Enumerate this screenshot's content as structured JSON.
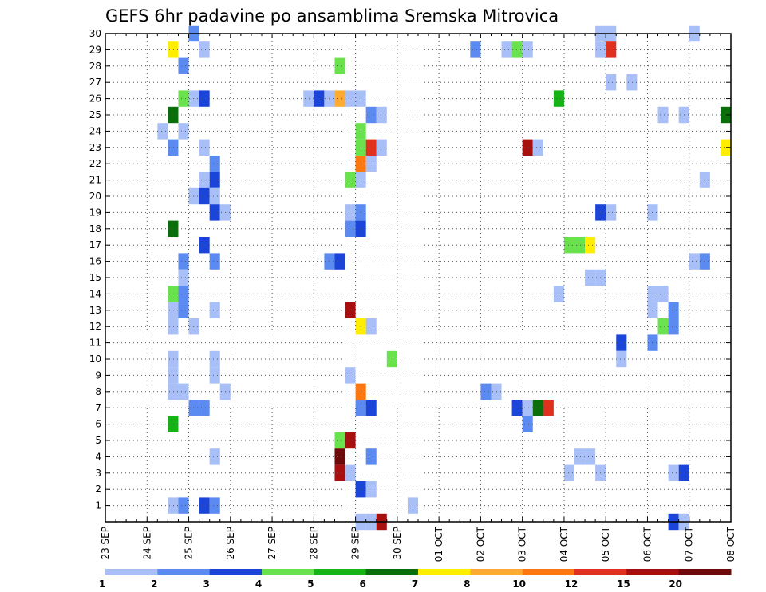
{
  "chart_data": {
    "type": "heatmap",
    "title": "GEFS 6hr padavine po ansamblima Sremska Mitrovica",
    "x_tick_labels": [
      "23 SEP",
      "24 SEP",
      "25 SEP",
      "26 SEP",
      "27 SEP",
      "28 SEP",
      "29 SEP",
      "30 SEP",
      "01 OCT",
      "02 OCT",
      "03 OCT",
      "04 OCT",
      "05 OCT",
      "06 OCT",
      "07 OCT",
      "08 OCT"
    ],
    "y_tick_labels": [
      "1",
      "2",
      "3",
      "4",
      "5",
      "6",
      "7",
      "8",
      "9",
      "10",
      "11",
      "12",
      "13",
      "14",
      "15",
      "16",
      "17",
      "18",
      "19",
      "20",
      "21",
      "22",
      "23",
      "24",
      "25",
      "26",
      "27",
      "28",
      "29",
      "30"
    ],
    "x_step_days": 0.25,
    "ylim": [
      0,
      30
    ],
    "grid": true,
    "legend": {
      "placement": "bottom",
      "labels": [
        "1",
        "2",
        "3",
        "4",
        "5",
        "6",
        "7",
        "8",
        "10",
        "12",
        "15",
        "20"
      ],
      "colors": [
        "#a9bff7",
        "#5b8af0",
        "#1b45d8",
        "#6ae24e",
        "#15b315",
        "#0a6e0a",
        "#ffee00",
        "#ffaa33",
        "#ff7711",
        "#e0301e",
        "#a80f0f",
        "#6e0a0a"
      ]
    },
    "cells_legend": "each cell = [x day index from 23 SEP 00Z, ensemble member, color class 1-12]",
    "cells": [
      [
        1.5,
        29,
        7
      ],
      [
        1.5,
        25,
        6
      ],
      [
        1.5,
        18,
        6
      ],
      [
        1.5,
        14,
        4
      ],
      [
        1.5,
        13,
        1
      ],
      [
        1.5,
        12,
        1
      ],
      [
        1.5,
        10,
        1
      ],
      [
        1.5,
        9,
        1
      ],
      [
        1.5,
        8,
        1
      ],
      [
        1.5,
        6,
        5
      ],
      [
        1.5,
        1,
        1
      ],
      [
        1.5,
        23,
        2
      ],
      [
        1.75,
        28,
        2
      ],
      [
        1.75,
        26,
        4
      ],
      [
        1.75,
        24,
        1
      ],
      [
        1.25,
        24,
        1
      ],
      [
        1.75,
        16,
        2
      ],
      [
        1.75,
        15,
        1
      ],
      [
        1.75,
        14,
        2
      ],
      [
        1.75,
        13,
        2
      ],
      [
        1.75,
        8,
        1
      ],
      [
        1.75,
        1,
        2
      ],
      [
        2.0,
        30,
        2
      ],
      [
        2.0,
        26,
        1
      ],
      [
        2.0,
        20,
        1
      ],
      [
        2.0,
        12,
        1
      ],
      [
        2.0,
        7,
        2
      ],
      [
        2.25,
        29,
        1
      ],
      [
        2.25,
        26,
        3
      ],
      [
        2.25,
        23,
        1
      ],
      [
        2.25,
        21,
        1
      ],
      [
        2.25,
        20,
        3
      ],
      [
        2.25,
        17,
        3
      ],
      [
        2.25,
        7,
        2
      ],
      [
        2.25,
        1,
        3
      ],
      [
        2.5,
        22,
        2
      ],
      [
        2.5,
        21,
        3
      ],
      [
        2.5,
        20,
        1
      ],
      [
        2.5,
        19,
        3
      ],
      [
        2.5,
        16,
        2
      ],
      [
        2.5,
        13,
        1
      ],
      [
        2.5,
        10,
        1
      ],
      [
        2.5,
        9,
        1
      ],
      [
        2.5,
        4,
        1
      ],
      [
        2.5,
        1,
        2
      ],
      [
        2.75,
        19,
        1
      ],
      [
        2.75,
        8,
        1
      ],
      [
        4.75,
        26,
        1
      ],
      [
        5.0,
        26,
        3
      ],
      [
        5.25,
        26,
        1
      ],
      [
        5.25,
        16,
        2
      ],
      [
        5.5,
        16,
        3
      ],
      [
        5.5,
        26,
        8
      ],
      [
        5.5,
        28,
        4
      ],
      [
        5.5,
        5,
        4
      ],
      [
        5.5,
        4,
        12
      ],
      [
        5.5,
        3,
        11
      ],
      [
        5.75,
        26,
        1
      ],
      [
        5.75,
        21,
        4
      ],
      [
        5.75,
        19,
        1
      ],
      [
        5.75,
        18,
        2
      ],
      [
        5.75,
        13,
        11
      ],
      [
        5.75,
        9,
        1
      ],
      [
        5.75,
        5,
        11
      ],
      [
        5.75,
        3,
        1
      ],
      [
        6.0,
        26,
        1
      ],
      [
        6.0,
        24,
        4
      ],
      [
        6.0,
        23,
        4
      ],
      [
        6.0,
        22,
        9
      ],
      [
        6.0,
        21,
        1
      ],
      [
        6.0,
        19,
        2
      ],
      [
        6.0,
        18,
        3
      ],
      [
        6.0,
        12,
        7
      ],
      [
        6.0,
        8,
        9
      ],
      [
        6.0,
        7,
        2
      ],
      [
        6.0,
        2,
        3
      ],
      [
        6.0,
        0,
        1
      ],
      [
        6.25,
        25,
        2
      ],
      [
        6.25,
        23,
        10
      ],
      [
        6.25,
        22,
        1
      ],
      [
        6.25,
        12,
        1
      ],
      [
        6.25,
        7,
        3
      ],
      [
        6.25,
        4,
        2
      ],
      [
        6.25,
        2,
        1
      ],
      [
        6.25,
        0,
        1
      ],
      [
        6.5,
        25,
        1
      ],
      [
        6.5,
        23,
        1
      ],
      [
        6.5,
        0,
        11
      ],
      [
        6.75,
        10,
        4
      ],
      [
        7.25,
        1,
        1
      ],
      [
        8.75,
        29,
        2
      ],
      [
        9.0,
        8,
        2
      ],
      [
        9.25,
        8,
        1
      ],
      [
        9.5,
        29,
        1
      ],
      [
        9.75,
        29,
        4
      ],
      [
        9.75,
        7,
        3
      ],
      [
        10.0,
        29,
        1
      ],
      [
        10.0,
        7,
        1
      ],
      [
        10.0,
        6,
        2
      ],
      [
        10.0,
        23,
        11
      ],
      [
        10.25,
        23,
        1
      ],
      [
        10.25,
        7,
        6
      ],
      [
        10.5,
        7,
        10
      ],
      [
        10.75,
        26,
        5
      ],
      [
        10.75,
        14,
        1
      ],
      [
        11.0,
        17,
        4
      ],
      [
        11.25,
        17,
        4
      ],
      [
        11.5,
        17,
        7
      ],
      [
        11.0,
        3,
        1
      ],
      [
        11.25,
        4,
        1
      ],
      [
        11.5,
        4,
        1
      ],
      [
        11.5,
        15,
        1
      ],
      [
        11.75,
        15,
        1
      ],
      [
        11.75,
        30,
        1
      ],
      [
        12.0,
        30,
        1
      ],
      [
        11.75,
        29,
        1
      ],
      [
        12.0,
        29,
        10
      ],
      [
        12.0,
        27,
        1
      ],
      [
        11.75,
        19,
        3
      ],
      [
        12.0,
        19,
        1
      ],
      [
        11.75,
        3,
        1
      ],
      [
        12.25,
        11,
        3
      ],
      [
        12.25,
        10,
        1
      ],
      [
        12.5,
        27,
        1
      ],
      [
        13.0,
        19,
        1
      ],
      [
        13.0,
        14,
        1
      ],
      [
        13.0,
        13,
        1
      ],
      [
        13.0,
        11,
        2
      ],
      [
        13.25,
        25,
        1
      ],
      [
        13.25,
        14,
        1
      ],
      [
        13.25,
        12,
        4
      ],
      [
        13.5,
        13,
        2
      ],
      [
        13.5,
        12,
        2
      ],
      [
        13.5,
        3,
        1
      ],
      [
        13.5,
        0,
        3
      ],
      [
        13.75,
        3,
        3
      ],
      [
        13.75,
        25,
        1
      ],
      [
        13.75,
        0,
        1
      ],
      [
        14.0,
        30,
        1
      ],
      [
        14.25,
        21,
        1
      ],
      [
        14.0,
        16,
        1
      ],
      [
        14.25,
        16,
        2
      ],
      [
        14.75,
        25,
        6
      ],
      [
        14.75,
        23,
        7
      ]
    ]
  }
}
